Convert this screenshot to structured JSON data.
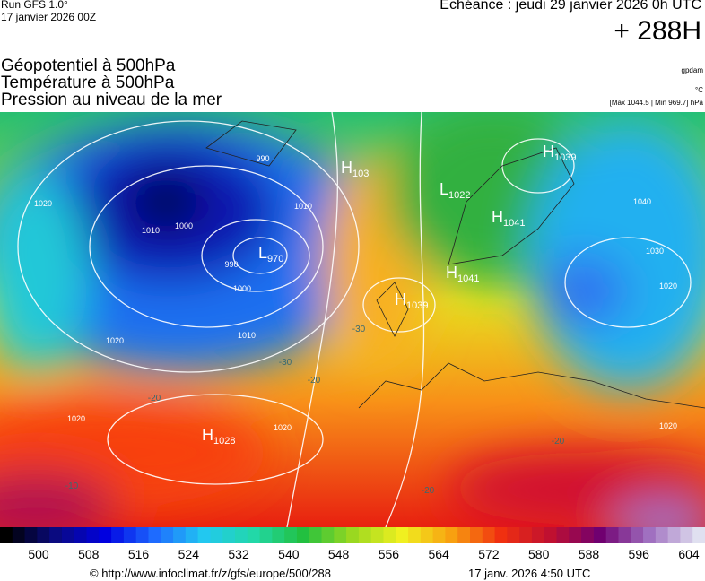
{
  "header": {
    "run": "Run GFS 1.0°",
    "run_date": "17 janvier 2026 00Z",
    "valid": "Echéance : jeudi 29 janvier 2026 0h UTC",
    "lead": "+ 288H",
    "fields": [
      "Géopotentiel à 500hPa",
      "Température à 500hPa",
      "Pression au niveau de la mer"
    ],
    "units": [
      "gpdam",
      "°C",
      "[Max 1044.5 | Min 969.7] hPa"
    ]
  },
  "map": {
    "centers": [
      {
        "kind": "L",
        "value": "970"
      },
      {
        "kind": "H",
        "value": "1028"
      },
      {
        "kind": "H",
        "value": "1039"
      },
      {
        "kind": "H",
        "value": "1041"
      },
      {
        "kind": "L",
        "value": "1022"
      },
      {
        "kind": "H",
        "value": "1039"
      },
      {
        "kind": "H",
        "value": "103"
      },
      {
        "kind": "H",
        "value": "1041"
      }
    ],
    "isobar_labels": [
      "990",
      "1010",
      "1010",
      "1000",
      "990",
      "1000",
      "1010",
      "1020",
      "1020",
      "1020",
      "1020",
      "1030",
      "1020",
      "1020",
      "1040"
    ],
    "temperature_labels": [
      "-30",
      "-20",
      "-20",
      "-10",
      "-20",
      "-30",
      "-20"
    ]
  },
  "colorbar": {
    "ticks": [
      500,
      508,
      516,
      524,
      532,
      540,
      548,
      556,
      564,
      572,
      580,
      588,
      596,
      604
    ],
    "colors": [
      "#000000",
      "#0a0a80",
      "#0000e0",
      "#1e6bff",
      "#22c8f0",
      "#22d8a8",
      "#22c040",
      "#9ad820",
      "#f0f020",
      "#f8a010",
      "#f03010",
      "#c01030",
      "#700070",
      "#a070c0",
      "#e0e0f0"
    ]
  },
  "footer": {
    "url": "© http://www.infoclimat.fr/z/gfs/europe/500/288",
    "stamp": "17 janv. 2026  4:50 UTC"
  }
}
